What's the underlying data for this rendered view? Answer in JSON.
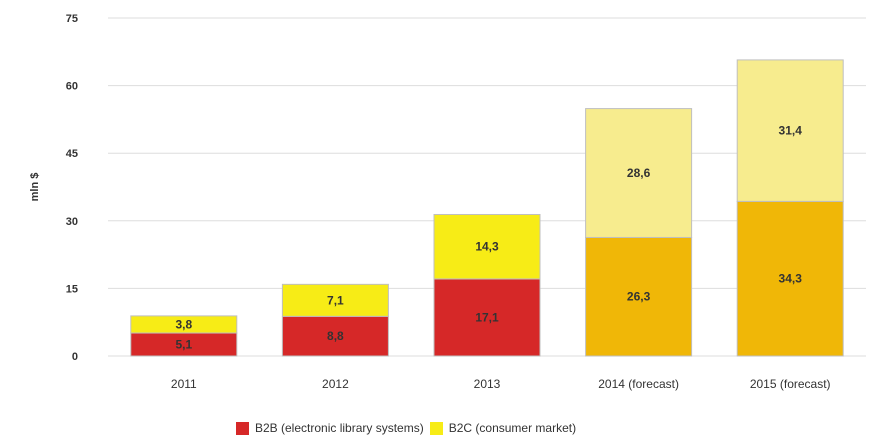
{
  "chart_data": {
    "type": "bar",
    "stacked": true,
    "categories": [
      "2011",
      "2012",
      "2013",
      "2014 (forecast)",
      "2015 (forecast)"
    ],
    "series": [
      {
        "name": "B2B (electronic library systems)",
        "values": [
          5.1,
          8.8,
          17.1,
          26.3,
          34.3
        ],
        "labels": [
          "5,1",
          "8,8",
          "17,1",
          "26,3",
          "34,3"
        ]
      },
      {
        "name": "B2C (consumer market)",
        "values": [
          3.8,
          7.1,
          14.3,
          28.6,
          31.4
        ],
        "labels": [
          "3,8",
          "7,1",
          "14,3",
          "28,6",
          "31,4"
        ]
      }
    ],
    "colors": {
      "b2b_actual": "#d62828",
      "b2c_actual": "#f7ec16",
      "b2b_forecast": "#f0b707",
      "b2c_forecast": "#f7ec8e"
    },
    "forecast_categories": [
      3,
      4
    ],
    "ylabel": "mln $",
    "ylim": [
      0,
      75
    ],
    "yticks": [
      0,
      15,
      30,
      45,
      60,
      75
    ],
    "grid": true,
    "legend_position": "bottom"
  }
}
